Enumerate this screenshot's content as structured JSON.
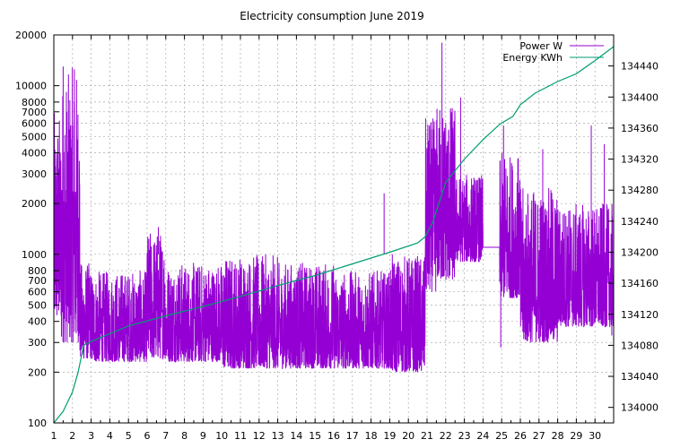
{
  "chart_data": {
    "type": "line",
    "title": "Electricity consumption June 2019",
    "xlabel": "",
    "ylabel": "",
    "x_ticks": [
      "1",
      "2",
      "3",
      "4",
      "5",
      "6",
      "7",
      "8",
      "9",
      "10",
      "11",
      "12",
      "13",
      "14",
      "15",
      "16",
      "17",
      "18",
      "19",
      "20",
      "21",
      "22",
      "23",
      "24",
      "25",
      "26",
      "27",
      "28",
      "29",
      "30"
    ],
    "xlim": [
      1,
      31
    ],
    "y_left": {
      "scale": "log",
      "lim": [
        100,
        20000
      ],
      "ticks": [
        100,
        200,
        300,
        400,
        500,
        600,
        700,
        800,
        1000,
        2000,
        3000,
        4000,
        5000,
        6000,
        7000,
        8000,
        10000,
        20000
      ],
      "tick_labels": [
        "100",
        "200",
        "300",
        "400",
        "500",
        "600",
        "700",
        "800",
        "1000",
        "2000",
        "3000",
        "4000",
        "5000",
        "6000",
        "7000",
        "8000",
        "10000",
        "20000"
      ]
    },
    "y_right": {
      "scale": "linear",
      "lim": [
        133980,
        134480
      ],
      "ticks": [
        134000,
        134040,
        134080,
        134120,
        134160,
        134200,
        134240,
        134280,
        134320,
        134360,
        134400,
        134440
      ],
      "tick_labels": [
        "134000",
        "134040",
        "134080",
        "134120",
        "134160",
        "134200",
        "134240",
        "134280",
        "134320",
        "134360",
        "134400",
        "134440"
      ]
    },
    "grid": true,
    "legend_position": "top-right",
    "series": [
      {
        "name": "Power W",
        "axis": "left",
        "color": "#9400d3",
        "segments": [
          {
            "x": [
              1.0,
              1.4
            ],
            "range": [
              400,
              7000
            ]
          },
          {
            "x": [
              1.4,
              1.9
            ],
            "range": [
              300,
              12000
            ]
          },
          {
            "x": [
              1.9,
              2.4
            ],
            "range": [
              300,
              13000
            ]
          },
          {
            "x": [
              2.4,
              3.0
            ],
            "range": [
              240,
              900
            ]
          },
          {
            "x": [
              3.0,
              6.0
            ],
            "range": [
              230,
              800
            ]
          },
          {
            "x": [
              6.0,
              7.0
            ],
            "range": [
              240,
              1400
            ]
          },
          {
            "x": [
              7.0,
              10.0
            ],
            "range": [
              230,
              900
            ]
          },
          {
            "x": [
              10.0,
              13.0
            ],
            "range": [
              210,
              1000
            ]
          },
          {
            "x": [
              13.0,
              16.0
            ],
            "range": [
              210,
              900
            ]
          },
          {
            "x": [
              16.0,
              19.0
            ],
            "range": [
              210,
              800
            ]
          },
          {
            "x": [
              19.0,
              20.9
            ],
            "range": [
              200,
              1000
            ]
          },
          {
            "x": [
              20.9,
              21.5
            ],
            "range": [
              600,
              6500
            ]
          },
          {
            "x": [
              21.5,
              22.5
            ],
            "range": [
              700,
              8000
            ]
          },
          {
            "x": [
              22.5,
              24.0
            ],
            "range": [
              900,
              3000
            ]
          },
          {
            "x": [
              24.0,
              24.9
            ],
            "range": [
              1100,
              1100
            ]
          },
          {
            "x": [
              24.9,
              26.0
            ],
            "range": [
              550,
              4000
            ]
          },
          {
            "x": [
              26.0,
              28.0
            ],
            "range": [
              300,
              2500
            ]
          },
          {
            "x": [
              28.0,
              31.0
            ],
            "range": [
              370,
              2000
            ]
          }
        ],
        "spikes": [
          {
            "x": 1.5,
            "y": 13000
          },
          {
            "x": 2.1,
            "y": 12500
          },
          {
            "x": 6.6,
            "y": 1450
          },
          {
            "x": 18.7,
            "y": 2300
          },
          {
            "x": 21.8,
            "y": 18000
          },
          {
            "x": 22.8,
            "y": 8500
          },
          {
            "x": 25.1,
            "y": 5800
          },
          {
            "x": 27.2,
            "y": 4200
          },
          {
            "x": 29.8,
            "y": 5800
          },
          {
            "x": 30.5,
            "y": 4500
          },
          {
            "x": 24.95,
            "y": 280
          },
          {
            "x": 30.9,
            "y": 330
          }
        ]
      },
      {
        "name": "Energy KWh",
        "axis": "right",
        "color": "#009e73",
        "x": [
          1.0,
          1.5,
          2.0,
          2.3,
          2.6,
          3.0,
          5.0,
          7.0,
          9.0,
          11.0,
          13.0,
          15.0,
          17.0,
          19.0,
          20.5,
          20.9,
          21.3,
          22.0,
          23.0,
          24.0,
          24.9,
          25.6,
          26.0,
          26.8,
          28.0,
          29.0,
          30.0,
          31.0
        ],
        "y": [
          133980,
          133995,
          134020,
          134045,
          134080,
          134085,
          134105,
          134118,
          134130,
          134143,
          134157,
          134170,
          134185,
          134200,
          134212,
          134220,
          134238,
          134290,
          134320,
          134345,
          134365,
          134375,
          134390,
          134405,
          134420,
          134430,
          134447,
          134465
        ]
      }
    ]
  }
}
